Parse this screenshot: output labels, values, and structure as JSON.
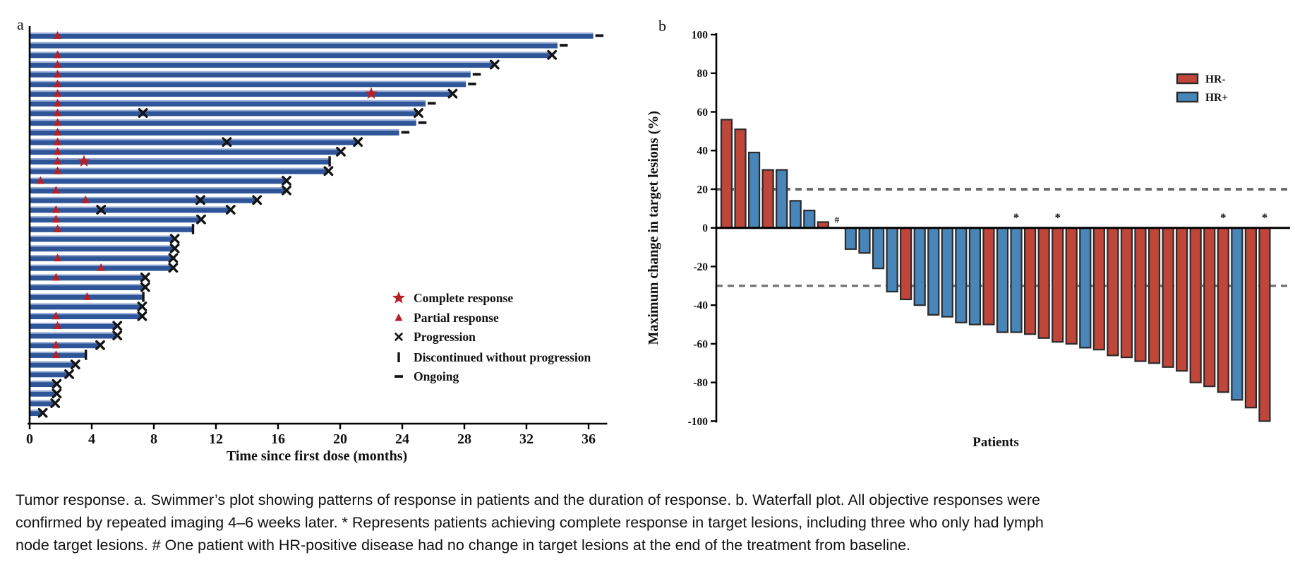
{
  "figure": {
    "panel_a_label": "a",
    "panel_b_label": "b"
  },
  "caption": {
    "lines": [
      "Tumor response. a. Swimmer’s plot showing patterns of response in patients and the duration of response. b. Waterfall plot. All objective responses were",
      "confirmed by repeated imaging 4–6 weeks later. * Represents patients achieving complete response in target lesions, including three who only had lymph",
      "node target lesions. # One patient with HR-positive disease had no change in target lesions at the end of the treatment from baseline."
    ]
  },
  "chart_data": [
    {
      "type": "swimmer",
      "xlabel": "Time since first dose (months)",
      "x_ticks": [
        0,
        4,
        8,
        12,
        16,
        20,
        24,
        28,
        32,
        36
      ],
      "xlim": [
        0,
        37.2
      ],
      "bar_color": "#2e5597",
      "bar_highlight_color": "#aabcdf",
      "response_marker_color": "#b42025",
      "event_marker_color": "#141414",
      "legend": [
        {
          "marker": "star",
          "label": "Complete response"
        },
        {
          "marker": "triangle",
          "label": "Partial response"
        },
        {
          "marker": "cross",
          "label": "Progression"
        },
        {
          "marker": "bar",
          "label": "Discontinued without progression"
        },
        {
          "marker": "dash",
          "label": "Ongoing"
        }
      ],
      "patients": [
        {
          "duration": 36.3,
          "partial_response": 1.8,
          "end": "ongoing"
        },
        {
          "duration": 34.0,
          "end": "ongoing"
        },
        {
          "duration": 33.6,
          "partial_response": 1.8,
          "end": "progression"
        },
        {
          "duration": 29.9,
          "partial_response": 1.8,
          "end": "progression"
        },
        {
          "duration": 28.4,
          "partial_response": 1.8,
          "end": "ongoing"
        },
        {
          "duration": 28.1,
          "partial_response": 1.8,
          "end": "ongoing"
        },
        {
          "duration": 27.2,
          "partial_response": 1.8,
          "complete_response": 22.0,
          "end": "progression"
        },
        {
          "duration": 25.5,
          "partial_response": 1.8,
          "end": "ongoing"
        },
        {
          "duration": 25.0,
          "partial_response": 1.8,
          "progression": [
            7.3
          ],
          "end": "progression"
        },
        {
          "duration": 24.9,
          "partial_response": 1.8,
          "end": "ongoing"
        },
        {
          "duration": 23.8,
          "partial_response": 1.8,
          "end": "ongoing"
        },
        {
          "duration": 21.1,
          "partial_response": 1.8,
          "progression": [
            12.7
          ],
          "end": "progression"
        },
        {
          "duration": 20.0,
          "partial_response": 1.8,
          "end": "progression"
        },
        {
          "duration": 19.3,
          "partial_response": 1.8,
          "complete_response": 3.5,
          "end": "discontinued"
        },
        {
          "duration": 19.2,
          "partial_response": 1.8,
          "end": "progression"
        },
        {
          "duration": 16.5,
          "partial_response": 0.7,
          "end": "progression"
        },
        {
          "duration": 16.5,
          "partial_response": 1.7,
          "end": "progression"
        },
        {
          "duration": 14.6,
          "partial_response": 3.6,
          "progression": [
            11.0
          ],
          "end": "progression"
        },
        {
          "duration": 12.9,
          "partial_response": 1.7,
          "progression": [
            4.6
          ],
          "end": "progression"
        },
        {
          "duration": 11.0,
          "partial_response": 1.7,
          "end": "progression"
        },
        {
          "duration": 10.5,
          "partial_response": 1.8,
          "end": "discontinued"
        },
        {
          "duration": 9.3,
          "end": "progression"
        },
        {
          "duration": 9.3,
          "end": "progression"
        },
        {
          "duration": 9.2,
          "partial_response": 1.8,
          "end": "progression"
        },
        {
          "duration": 9.2,
          "partial_response": 4.6,
          "end": "progression"
        },
        {
          "duration": 7.4,
          "partial_response": 1.7,
          "end": "progression"
        },
        {
          "duration": 7.4,
          "end": "progression"
        },
        {
          "duration": 7.3,
          "partial_response": 3.7,
          "end": "discontinued"
        },
        {
          "duration": 7.2,
          "end": "progression"
        },
        {
          "duration": 7.2,
          "partial_response": 1.7,
          "end": "progression"
        },
        {
          "duration": 5.6,
          "partial_response": 1.8,
          "end": "progression"
        },
        {
          "duration": 5.6,
          "end": "progression"
        },
        {
          "duration": 4.5,
          "partial_response": 1.7,
          "end": "progression"
        },
        {
          "duration": 3.6,
          "partial_response": 1.7,
          "end": "discontinued"
        },
        {
          "duration": 2.9,
          "end": "progression"
        },
        {
          "duration": 2.5,
          "end": "progression"
        },
        {
          "duration": 1.7,
          "end": "progression"
        },
        {
          "duration": 1.7,
          "end": "progression"
        },
        {
          "duration": 1.6,
          "end": "progression"
        },
        {
          "duration": 0.8,
          "end": "progression"
        }
      ]
    },
    {
      "type": "bar",
      "ylabel": "Maximum change in target lesions (%)",
      "xlabel": "Patients",
      "ylim": [
        -100,
        100
      ],
      "y_ticks": [
        100,
        80,
        60,
        40,
        20,
        0,
        -20,
        -40,
        -60,
        -80,
        -100
      ],
      "reference_lines": [
        20,
        -30
      ],
      "bar_outline_color": "#2b2b2b",
      "reference_line_color": "#6f6f6f",
      "legend": [
        {
          "label": "HR-",
          "color": "#c1463a"
        },
        {
          "label": "HR+",
          "color": "#4886ba"
        }
      ],
      "patients": [
        {
          "value": 56,
          "group": "HR-"
        },
        {
          "value": 51,
          "group": "HR-"
        },
        {
          "value": 39,
          "group": "HR+"
        },
        {
          "value": 30,
          "group": "HR-"
        },
        {
          "value": 30,
          "group": "HR+"
        },
        {
          "value": 14,
          "group": "HR+"
        },
        {
          "value": 9,
          "group": "HR+"
        },
        {
          "value": 3,
          "group": "HR-"
        },
        {
          "value": 0,
          "group": "HR+",
          "annotation": "#"
        },
        {
          "value": -11,
          "group": "HR+"
        },
        {
          "value": -13,
          "group": "HR+"
        },
        {
          "value": -21,
          "group": "HR+"
        },
        {
          "value": -33,
          "group": "HR+"
        },
        {
          "value": -37,
          "group": "HR-"
        },
        {
          "value": -40,
          "group": "HR+"
        },
        {
          "value": -45,
          "group": "HR+"
        },
        {
          "value": -46,
          "group": "HR+"
        },
        {
          "value": -49,
          "group": "HR+"
        },
        {
          "value": -50,
          "group": "HR+"
        },
        {
          "value": -50,
          "group": "HR-"
        },
        {
          "value": -54,
          "group": "HR+"
        },
        {
          "value": -54,
          "group": "HR+",
          "annotation": "*"
        },
        {
          "value": -55,
          "group": "HR-"
        },
        {
          "value": -57,
          "group": "HR-"
        },
        {
          "value": -59,
          "group": "HR-",
          "annotation": "*"
        },
        {
          "value": -60,
          "group": "HR-"
        },
        {
          "value": -62,
          "group": "HR+"
        },
        {
          "value": -63,
          "group": "HR-"
        },
        {
          "value": -66,
          "group": "HR-"
        },
        {
          "value": -67,
          "group": "HR-"
        },
        {
          "value": -69,
          "group": "HR-"
        },
        {
          "value": -70,
          "group": "HR-"
        },
        {
          "value": -72,
          "group": "HR-"
        },
        {
          "value": -74,
          "group": "HR-"
        },
        {
          "value": -80,
          "group": "HR-"
        },
        {
          "value": -82,
          "group": "HR-"
        },
        {
          "value": -85,
          "group": "HR-",
          "annotation": "*"
        },
        {
          "value": -89,
          "group": "HR+"
        },
        {
          "value": -93,
          "group": "HR-"
        },
        {
          "value": -100,
          "group": "HR-",
          "annotation": "*"
        }
      ]
    }
  ]
}
